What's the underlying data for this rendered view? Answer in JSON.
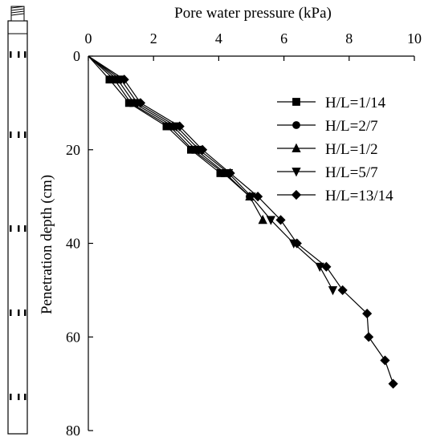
{
  "chart_data": {
    "type": "line",
    "title": "",
    "xlabel": "Pore water pressure (kPa)",
    "ylabel": "Penetration depth (cm)",
    "xlim": [
      0,
      10
    ],
    "ylim": [
      0,
      80
    ],
    "y_inverted": true,
    "x_axis_position": "top",
    "x_ticks": [
      0,
      2,
      4,
      6,
      8,
      10
    ],
    "y_ticks": [
      0,
      20,
      40,
      60,
      80
    ],
    "grid": false,
    "legend_position": "right",
    "colors": {
      "line": "#000000",
      "marker": "#000000",
      "background": "#ffffff"
    },
    "series": [
      {
        "name": "H/L=1/14",
        "marker": "square",
        "x": [
          0,
          0.65,
          1.25,
          2.4,
          3.15,
          4.05
        ],
        "y": [
          0,
          5,
          10,
          15,
          20,
          25
        ]
      },
      {
        "name": "H/L=2/7",
        "marker": "circle",
        "x": [
          0,
          0.8,
          1.3,
          2.5,
          3.2,
          4.15,
          4.95
        ],
        "y": [
          0,
          5,
          10,
          15,
          20,
          25,
          30
        ]
      },
      {
        "name": "H/L=1/2",
        "marker": "triangle-up",
        "x": [
          0,
          0.9,
          1.4,
          2.6,
          3.3,
          4.2,
          4.95,
          5.35
        ],
        "y": [
          0,
          5,
          10,
          15,
          20,
          25,
          30,
          35
        ]
      },
      {
        "name": "H/L=5/7",
        "marker": "triangle-down",
        "x": [
          0,
          1.0,
          1.5,
          2.7,
          3.4,
          4.3,
          5.0,
          5.6,
          6.3,
          7.1,
          7.5
        ],
        "y": [
          0,
          5,
          10,
          15,
          20,
          25,
          30,
          35,
          40,
          45,
          50
        ]
      },
      {
        "name": "H/L=13/14",
        "marker": "diamond",
        "x": [
          0,
          1.1,
          1.6,
          2.8,
          3.5,
          4.35,
          5.2,
          5.9,
          6.4,
          7.3,
          7.8,
          8.55,
          8.6,
          9.1,
          9.35
        ],
        "y": [
          0,
          5,
          10,
          15,
          20,
          25,
          30,
          35,
          40,
          45,
          50,
          55,
          60,
          65,
          70
        ]
      }
    ]
  }
}
